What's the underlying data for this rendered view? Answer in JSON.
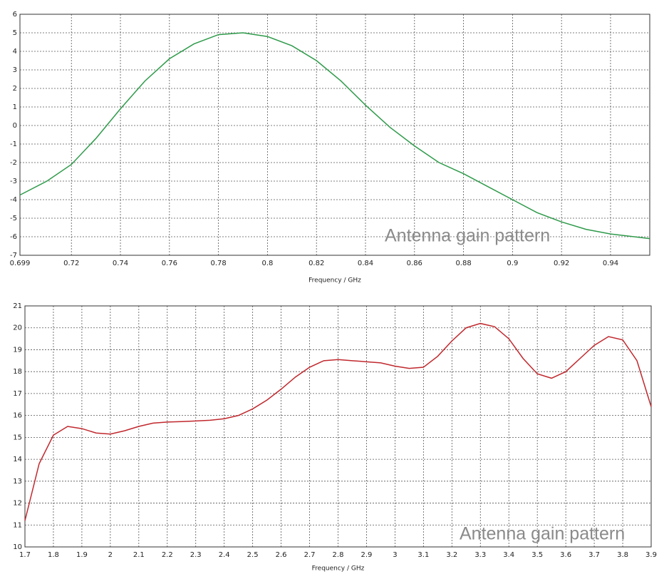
{
  "chart_data": [
    {
      "type": "line",
      "xlabel": "Frequency / GHz",
      "annotation": "Antenna gain pattern",
      "grid": true,
      "xlim": [
        0.699,
        0.956
      ],
      "xticks": [
        0.699,
        0.72,
        0.74,
        0.76,
        0.78,
        0.8,
        0.82,
        0.84,
        0.86,
        0.88,
        0.9,
        0.92,
        0.94
      ],
      "ylim": [
        -7,
        6
      ],
      "yticks": [
        -7,
        -6,
        -5,
        -4,
        -3,
        -2,
        -1,
        0,
        1,
        2,
        3,
        4,
        5,
        6
      ],
      "x": [
        0.699,
        0.71,
        0.72,
        0.73,
        0.74,
        0.75,
        0.76,
        0.77,
        0.78,
        0.79,
        0.8,
        0.81,
        0.82,
        0.83,
        0.84,
        0.85,
        0.86,
        0.87,
        0.88,
        0.89,
        0.9,
        0.91,
        0.92,
        0.93,
        0.94,
        0.956
      ],
      "series": [
        {
          "color": "#2e9a4a",
          "values": [
            -3.75,
            -3.0,
            -2.1,
            -0.7,
            0.9,
            2.4,
            3.6,
            4.4,
            4.9,
            5.0,
            4.8,
            4.3,
            3.5,
            2.4,
            1.1,
            -0.1,
            -1.1,
            -2.0,
            -2.6,
            -3.3,
            -4.0,
            -4.7,
            -5.2,
            -5.6,
            -5.85,
            -6.1
          ]
        }
      ]
    },
    {
      "type": "line",
      "xlabel": "Frequency / GHz",
      "annotation": "Antenna gain pattern",
      "grid": true,
      "xlim": [
        1.7,
        3.9
      ],
      "xticks": [
        1.7,
        1.8,
        1.9,
        2,
        2.1,
        2.2,
        2.3,
        2.4,
        2.5,
        2.6,
        2.7,
        2.8,
        2.9,
        3,
        3.1,
        3.2,
        3.3,
        3.4,
        3.5,
        3.6,
        3.7,
        3.8,
        3.9
      ],
      "ylim": [
        10,
        21
      ],
      "yticks": [
        10,
        11,
        12,
        13,
        14,
        15,
        16,
        17,
        18,
        19,
        20,
        21
      ],
      "x": [
        1.7,
        1.75,
        1.8,
        1.85,
        1.9,
        1.95,
        2,
        2.05,
        2.1,
        2.15,
        2.2,
        2.25,
        2.3,
        2.35,
        2.4,
        2.45,
        2.5,
        2.55,
        2.6,
        2.65,
        2.7,
        2.75,
        2.8,
        2.85,
        2.9,
        2.95,
        3,
        3.05,
        3.1,
        3.15,
        3.2,
        3.25,
        3.3,
        3.35,
        3.4,
        3.45,
        3.5,
        3.55,
        3.6,
        3.65,
        3.7,
        3.75,
        3.8,
        3.85,
        3.9
      ],
      "series": [
        {
          "color": "#c0282d",
          "values": [
            11.2,
            13.8,
            15.1,
            15.5,
            15.4,
            15.2,
            15.15,
            15.3,
            15.5,
            15.65,
            15.7,
            15.72,
            15.75,
            15.78,
            15.85,
            16.0,
            16.3,
            16.7,
            17.2,
            17.75,
            18.2,
            18.5,
            18.55,
            18.5,
            18.45,
            18.4,
            18.25,
            18.15,
            18.2,
            18.7,
            19.4,
            20.0,
            20.2,
            20.05,
            19.5,
            18.6,
            17.9,
            17.7,
            18.0,
            18.6,
            19.2,
            19.6,
            19.45,
            18.5,
            16.4
          ]
        }
      ]
    }
  ]
}
